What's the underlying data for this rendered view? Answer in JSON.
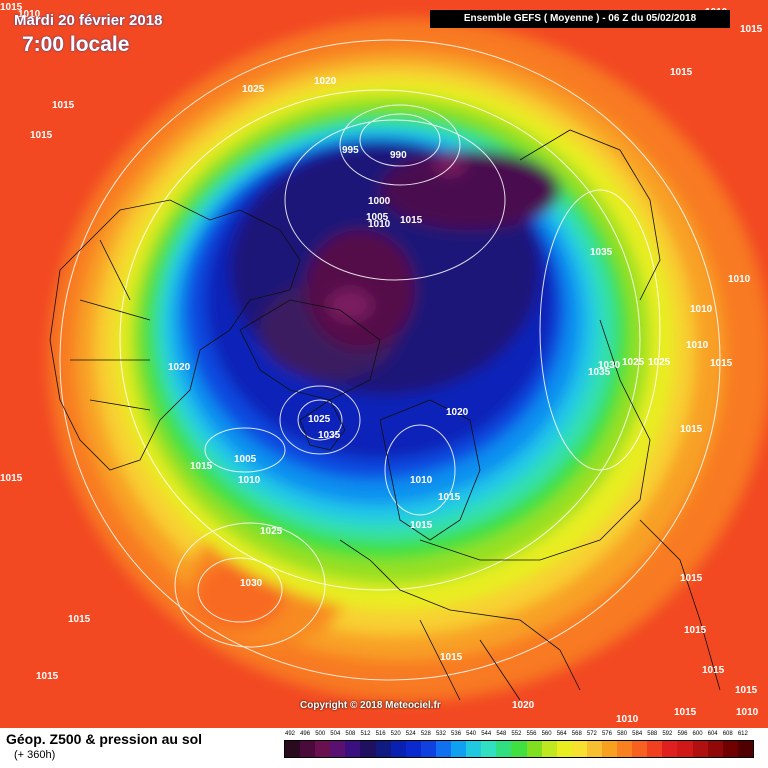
{
  "header": {
    "date": "Mardi 20 février 2018",
    "time": "7:00 locale",
    "model": "Ensemble GEFS  ( Moyenne )  -  06 Z du 05/02/2018"
  },
  "copyright": "Copyright © 2018 Meteociel.fr",
  "footer": {
    "title": "Géop. Z500 & pression au sol",
    "subtitle": "(+ 360h)"
  },
  "legend": {
    "values": [
      "492",
      "496",
      "500",
      "504",
      "508",
      "512",
      "516",
      "520",
      "524",
      "528",
      "532",
      "536",
      "540",
      "544",
      "548",
      "552",
      "556",
      "560",
      "564",
      "568",
      "572",
      "576",
      "580",
      "584",
      "588",
      "592",
      "596",
      "600",
      "604",
      "608",
      "612"
    ],
    "colors": [
      "#2a0a1e",
      "#4a0a3a",
      "#6a1050",
      "#5a1070",
      "#3a1080",
      "#201060",
      "#101a80",
      "#0a20b0",
      "#0a2ad0",
      "#1040e0",
      "#1070f0",
      "#10a0f0",
      "#20c8e0",
      "#30e0c0",
      "#30e080",
      "#40e040",
      "#80e020",
      "#c0e820",
      "#e8ee20",
      "#f8e030",
      "#f8c030",
      "#f8a020",
      "#f88020",
      "#f86020",
      "#f04020",
      "#e02020",
      "#d01818",
      "#b01010",
      "#900808",
      "#700000",
      "#500000"
    ]
  },
  "isobars": [
    {
      "text": "1010"
    },
    {
      "text": "1015"
    },
    {
      "text": "1015"
    },
    {
      "text": "1025"
    },
    {
      "text": "1020"
    },
    {
      "text": "995"
    },
    {
      "text": "990"
    },
    {
      "text": "1000"
    },
    {
      "text": "1005"
    },
    {
      "text": "1010"
    },
    {
      "text": "1015"
    },
    {
      "text": "1035"
    },
    {
      "text": "1015"
    },
    {
      "text": "1010"
    },
    {
      "text": "1010"
    },
    {
      "text": "1020"
    },
    {
      "text": "1030"
    },
    {
      "text": "1035"
    },
    {
      "text": "1025"
    },
    {
      "text": "1025"
    },
    {
      "text": "1010"
    },
    {
      "text": "1015"
    },
    {
      "text": "1025"
    },
    {
      "text": "1035"
    },
    {
      "text": "1015"
    },
    {
      "text": "1020"
    },
    {
      "text": "1005"
    },
    {
      "text": "1015"
    },
    {
      "text": "1010"
    },
    {
      "text": "1010"
    },
    {
      "text": "1015"
    },
    {
      "text": "1015"
    },
    {
      "text": "1015"
    },
    {
      "text": "1025"
    },
    {
      "text": "1030"
    },
    {
      "text": "1015"
    },
    {
      "text": "1015"
    },
    {
      "text": "1010"
    },
    {
      "text": "1015"
    },
    {
      "text": "1015"
    },
    {
      "text": "1015"
    },
    {
      "text": "1015"
    },
    {
      "text": "1015"
    },
    {
      "text": "1015"
    },
    {
      "text": "1015"
    },
    {
      "text": "1020"
    },
    {
      "text": "1010"
    },
    {
      "text": "1010"
    },
    {
      "text": "1015"
    }
  ]
}
